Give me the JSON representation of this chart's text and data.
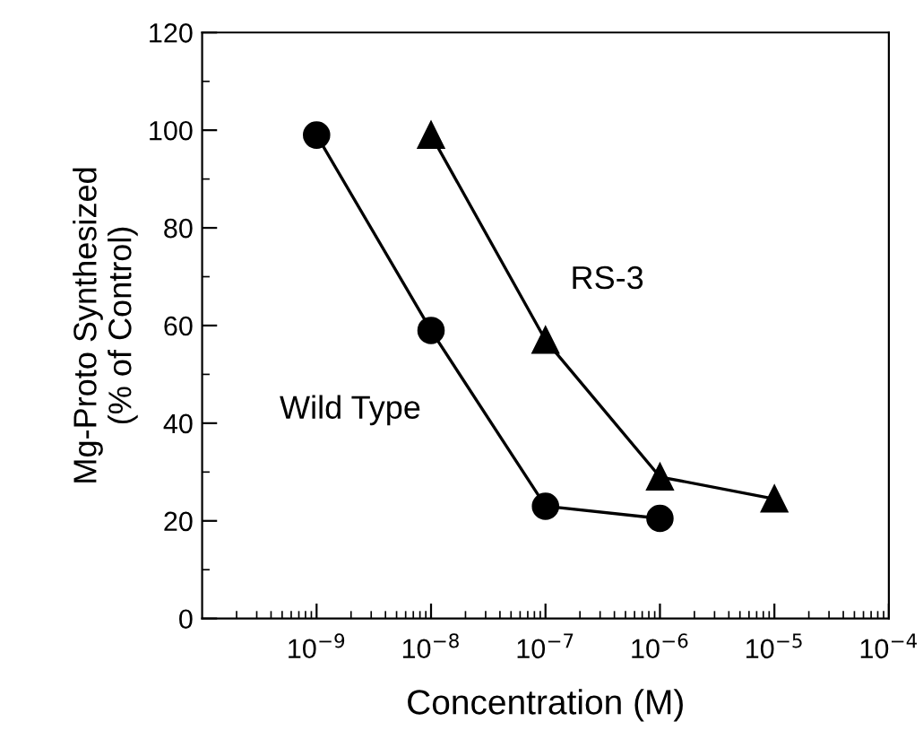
{
  "chart_data": {
    "type": "line",
    "xlabel": "Concentration (M)",
    "ylabel": "Mg-Proto Synthesized\n(% of Control)",
    "log": "x",
    "xlim": [
      1e-10,
      0.0001
    ],
    "ylim": [
      0,
      120
    ],
    "xticks": [
      {
        "value": 1e-09,
        "label": "10$^{−9}$"
      },
      {
        "value": 1e-08,
        "label": "10$^{−8}$"
      },
      {
        "value": 1e-07,
        "label": "10$^{−7}$"
      },
      {
        "value": 1e-06,
        "label": "10$^{−6}$"
      },
      {
        "value": 1e-05,
        "label": "10$^{−5}$"
      },
      {
        "value": 0.0001,
        "label": "10$^{−4}$"
      }
    ],
    "yticks": [
      0,
      20,
      40,
      60,
      80,
      100,
      120
    ],
    "grid": false,
    "legend": false,
    "line_style": "solid",
    "series": [
      {
        "name": "Wild Type",
        "color": "#000000",
        "marker": "circle",
        "x": [
          1e-09,
          1e-08,
          1e-07,
          1e-06
        ],
        "values": [
          99,
          59,
          23,
          20.5
        ]
      },
      {
        "name": "RS-3",
        "color": "#000000",
        "marker": "triangle",
        "x": [
          1e-08,
          1e-07,
          1e-06,
          1e-05
        ],
        "values": [
          99,
          57,
          29,
          24.5
        ]
      }
    ]
  }
}
